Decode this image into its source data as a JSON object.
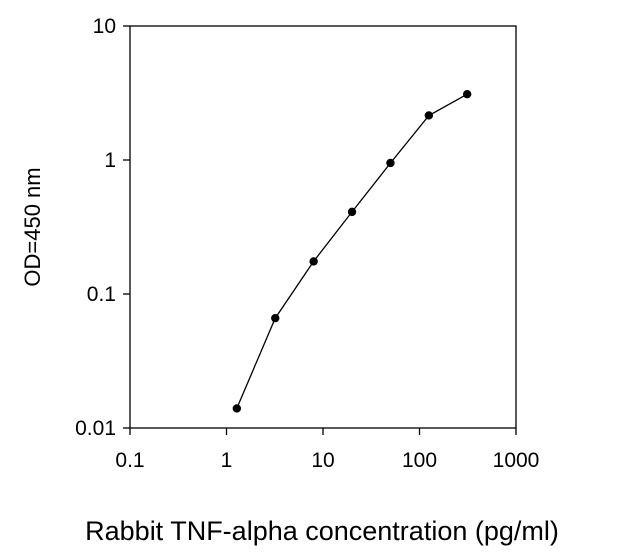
{
  "chart_data": {
    "type": "line",
    "x_scale": "log",
    "y_scale": "log",
    "xlim": [
      0.1,
      1000
    ],
    "ylim": [
      0.01,
      10
    ],
    "x_ticks": [
      "0.1",
      "1",
      "10",
      "100",
      "1000"
    ],
    "y_ticks": [
      "10",
      "1",
      "0.1",
      "0.01"
    ],
    "xlabel": "Rabbit TNF-alpha concentration (pg/ml)",
    "ylabel": "OD=450 nm",
    "grid": false,
    "series": [
      {
        "x": [
          1.28,
          3.2,
          8,
          20,
          50,
          125,
          312
        ],
        "y": [
          0.014,
          0.066,
          0.175,
          0.41,
          0.95,
          2.15,
          3.1
        ]
      }
    ],
    "colors": {
      "line": "#000000",
      "marker": "#000000",
      "axis": "#000000"
    }
  }
}
